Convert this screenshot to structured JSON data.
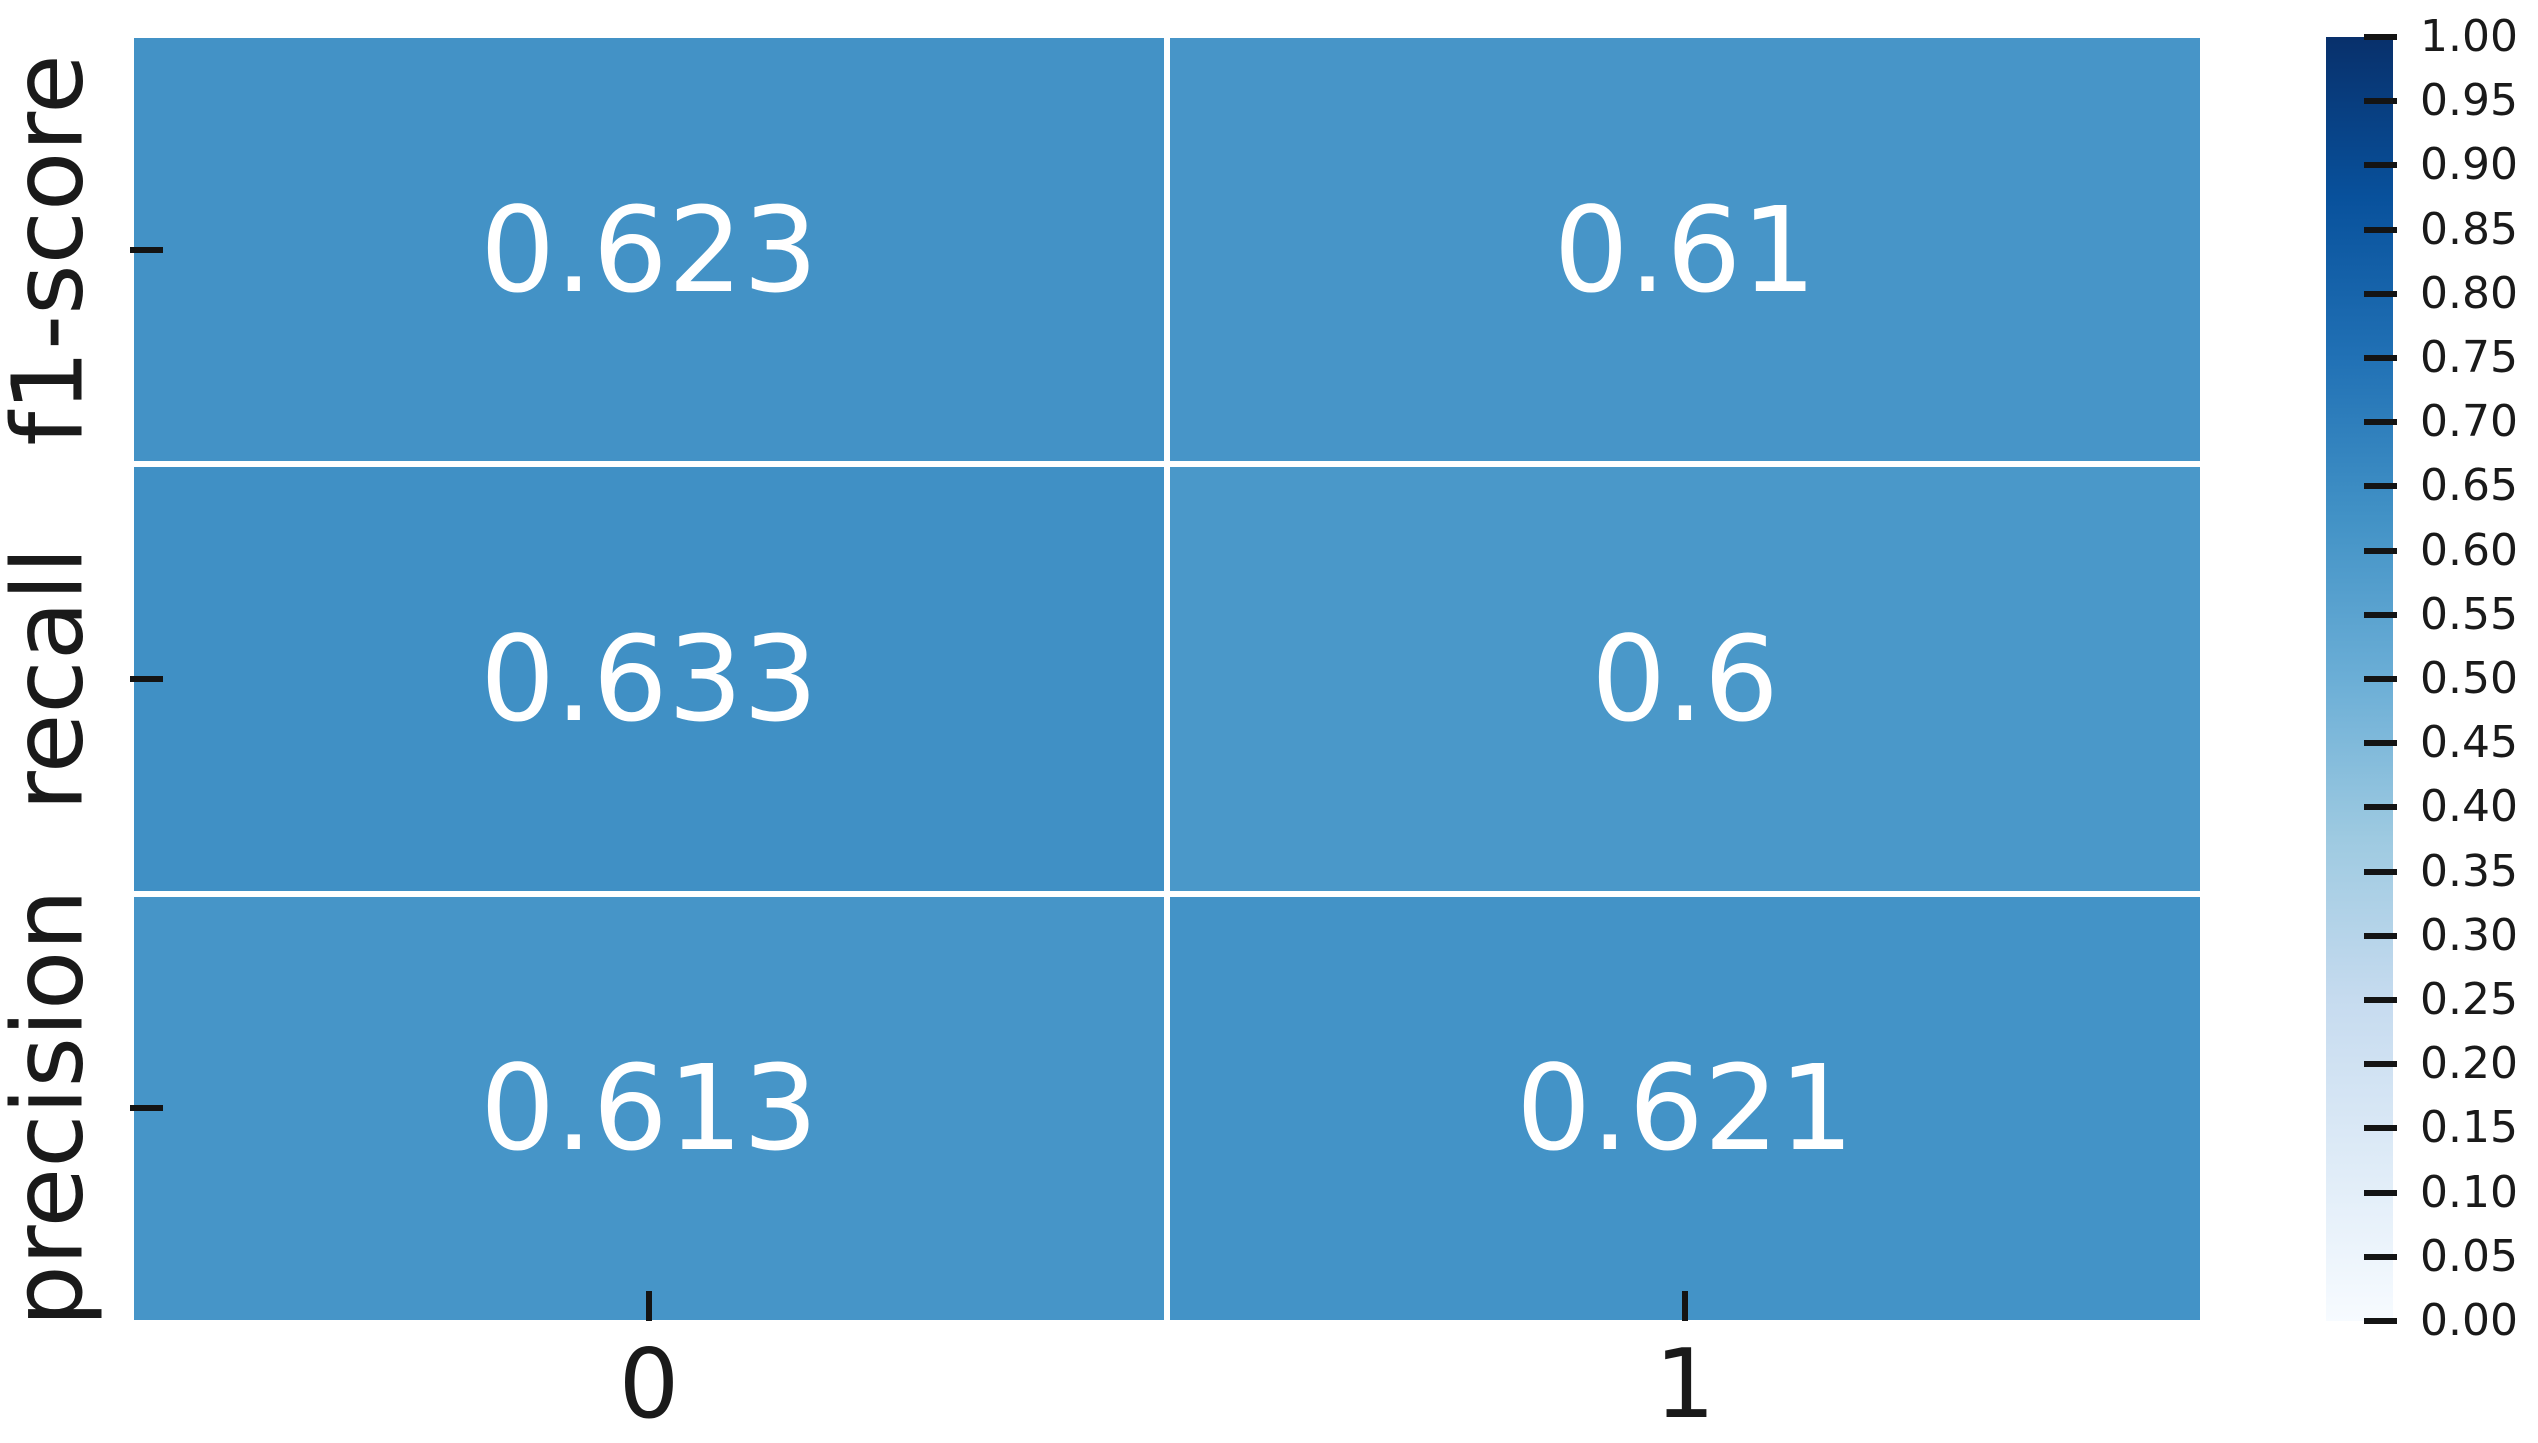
{
  "chart_data": {
    "type": "heatmap",
    "rows": [
      "f1-score",
      "recall",
      "precision"
    ],
    "columns": [
      "0",
      "1"
    ],
    "series": [
      {
        "name": "f1-score",
        "values": [
          0.623,
          0.61
        ]
      },
      {
        "name": "recall",
        "values": [
          0.633,
          0.6
        ]
      },
      {
        "name": "precision",
        "values": [
          0.613,
          0.621
        ]
      }
    ],
    "cells": [
      {
        "row": "f1-score",
        "col": "0",
        "value": 0.623,
        "label": "0.623",
        "color": "#4392c6"
      },
      {
        "row": "f1-score",
        "col": "1",
        "value": 0.61,
        "label": "0.61",
        "color": "#4795c8"
      },
      {
        "row": "recall",
        "col": "0",
        "value": 0.633,
        "label": "0.633",
        "color": "#4090c5"
      },
      {
        "row": "recall",
        "col": "1",
        "value": 0.6,
        "label": "0.6",
        "color": "#4a98c9"
      },
      {
        "row": "precision",
        "col": "0",
        "value": 0.613,
        "label": "0.613",
        "color": "#4695c8"
      },
      {
        "row": "precision",
        "col": "1",
        "value": 0.621,
        "label": "0.621",
        "color": "#4393c7"
      }
    ],
    "vmin": 0.0,
    "vmax": 1.0,
    "annot": true,
    "grid": false,
    "legend_position": "right-colorbar",
    "colormap": "Blues",
    "colorbar": {
      "ticks": [
        "1.00",
        "0.95",
        "0.90",
        "0.85",
        "0.80",
        "0.75",
        "0.70",
        "0.65",
        "0.60",
        "0.55",
        "0.50",
        "0.45",
        "0.40",
        "0.35",
        "0.30",
        "0.25",
        "0.20",
        "0.15",
        "0.10",
        "0.05",
        "0.00"
      ],
      "gradient_stops_top_to_bottom": [
        "#08306b",
        "#08519c",
        "#2171b5",
        "#4292c6",
        "#6baed6",
        "#9ecae1",
        "#c6dbef",
        "#deebf7",
        "#f7fbff"
      ]
    }
  },
  "colors": {
    "cell_text": "#ffffff",
    "axis_text": "#1a1a1a",
    "tick_mark": "#141414",
    "background": "#ffffff",
    "cell_divider": "#ffffff"
  }
}
